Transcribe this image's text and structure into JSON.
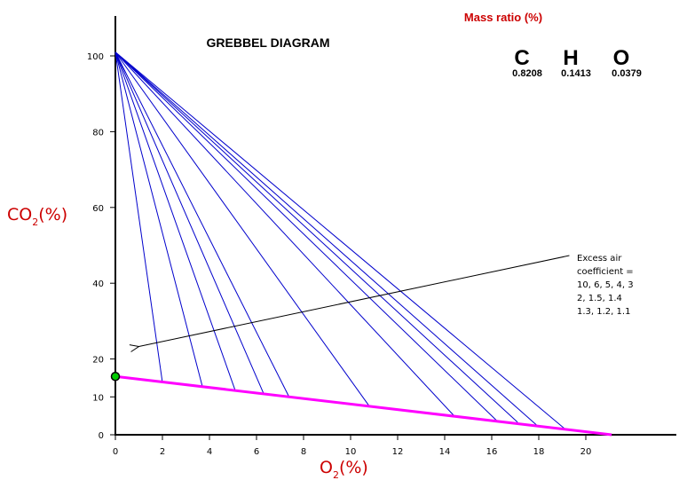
{
  "chart_data": {
    "type": "line",
    "title": "GREBBEL DIAGRAM",
    "xlabel": {
      "main": "O",
      "sub": "2",
      "tail": "(%)"
    },
    "ylabel": {
      "main": "CO",
      "sub": "2",
      "tail": "(%)"
    },
    "xlim": [
      0,
      23.5
    ],
    "ylim": [
      0,
      110
    ],
    "xticks": [
      "0",
      "2",
      "4",
      "6",
      "8",
      "10",
      "12",
      "14",
      "16",
      "18",
      "20"
    ],
    "yticks": [
      "0",
      "10",
      "20",
      "40",
      "60",
      "80",
      "100"
    ],
    "mass_ratio": {
      "title": "Mass ratio (%)",
      "elements": [
        {
          "symbol": "C",
          "value": "0.8208"
        },
        {
          "symbol": "H",
          "value": "0.1413"
        },
        {
          "symbol": "O",
          "value": "0.0379"
        }
      ]
    },
    "annotation": {
      "lines": [
        "Excess air",
        "coefficient =",
        "10, 6, 5, 4, 3",
        "2, 1.5, 1.4",
        "1.3, 1.2, 1.1"
      ],
      "arrow_from": [
        19.3,
        47.3
      ],
      "arrow_to": [
        1.0,
        23.3
      ]
    },
    "apex": [
      0,
      101
    ],
    "baseline": {
      "color": "#ff00ff",
      "points": [
        [
          0,
          15.4
        ],
        [
          21.1,
          0
        ]
      ]
    },
    "excess_air_lines": [
      {
        "label": "10",
        "end": [
          2.0,
          13.8
        ]
      },
      {
        "label": "6",
        "end": [
          3.7,
          12.7
        ]
      },
      {
        "label": "5",
        "end": [
          5.1,
          11.6
        ]
      },
      {
        "label": "4",
        "end": [
          6.3,
          10.9
        ]
      },
      {
        "label": "3",
        "end": [
          7.4,
          9.8
        ]
      },
      {
        "label": "2",
        "end": [
          10.8,
          7.5
        ]
      },
      {
        "label": "1.5",
        "end": [
          14.4,
          5.0
        ]
      },
      {
        "label": "1.4",
        "end": [
          16.2,
          3.8
        ]
      },
      {
        "label": "1.3",
        "end": [
          17.1,
          3.3
        ]
      },
      {
        "label": "1.2",
        "end": [
          17.9,
          2.6
        ]
      },
      {
        "label": "1.1",
        "end": [
          19.1,
          1.6
        ]
      }
    ],
    "fan_color": "#0000cc",
    "marker": {
      "x": 0,
      "y": 15.4,
      "color": "#00cc00"
    },
    "label_color": "#cc0000"
  }
}
